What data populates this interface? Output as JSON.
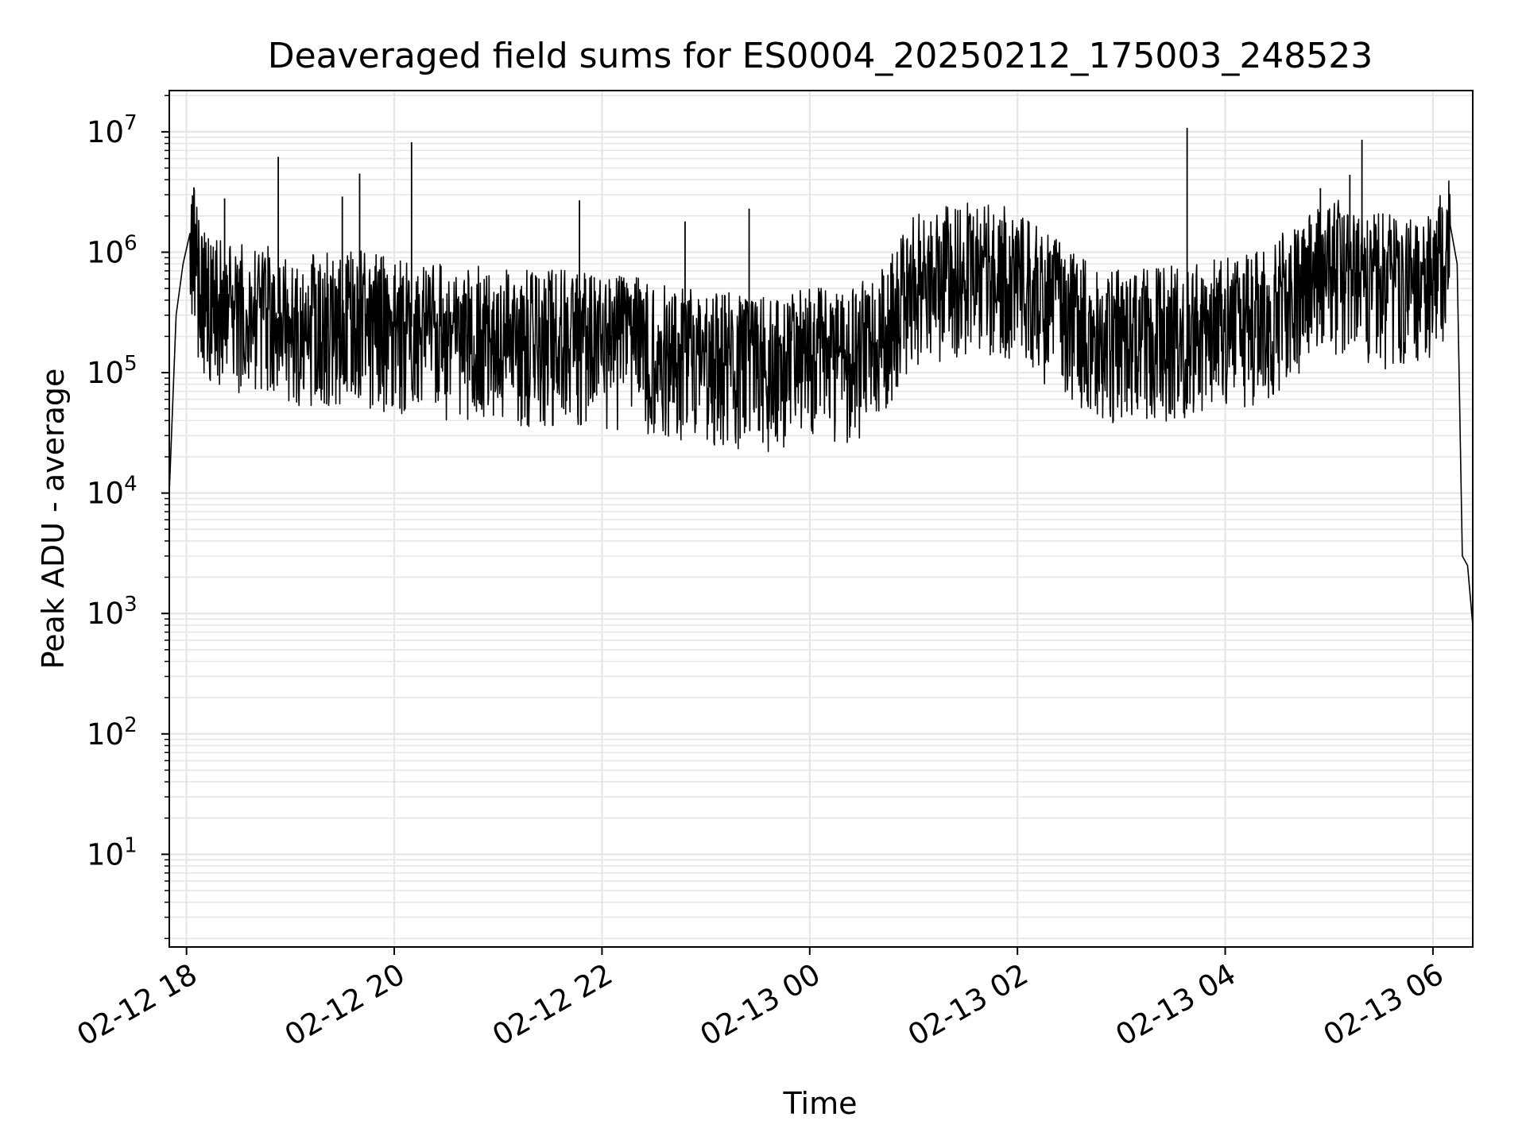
{
  "chart_data": {
    "type": "line",
    "title": "Deaveraged field sums for ES0004_20250212_175003_248523",
    "xlabel": "Time",
    "ylabel": "Peak ADU - average",
    "yscale": "log",
    "ylim": [
      1.7,
      22000000
    ],
    "xlim": [
      "2025-02-12 17:50:03",
      "2025-02-13 06:23:00"
    ],
    "grid": true,
    "legend": "none",
    "line_color": "#000000",
    "grid_color": "#e6e6e6",
    "x_ticks": [
      "02-12 18",
      "02-12 20",
      "02-12 22",
      "02-13 00",
      "02-13 02",
      "02-13 04",
      "02-13 06"
    ],
    "y_tick_base": "10",
    "y_tick_exponents": [
      "1",
      "2",
      "3",
      "4",
      "5",
      "6",
      "7"
    ],
    "series": [
      {
        "x": [
          "2025-02-12 17:50:03",
          "2025-02-12 17:54:00",
          "2025-02-12 17:58:00",
          "2025-02-12 18:02:00",
          "2025-02-12 18:10:00",
          "2025-02-12 18:25:00",
          "2025-02-12 18:45:00",
          "2025-02-12 19:00:00",
          "2025-02-12 19:20:00",
          "2025-02-12 19:40:00",
          "2025-02-12 20:00:00",
          "2025-02-12 20:20:00",
          "2025-02-12 20:40:00",
          "2025-02-12 21:00:00",
          "2025-02-12 21:20:00",
          "2025-02-12 21:40:00",
          "2025-02-12 22:00:00",
          "2025-02-12 22:20:00",
          "2025-02-12 22:40:00",
          "2025-02-12 23:00:00",
          "2025-02-12 23:20:00",
          "2025-02-12 23:40:00",
          "2025-02-13 00:00:00",
          "2025-02-13 00:20:00",
          "2025-02-13 00:40:00",
          "2025-02-13 01:00:00",
          "2025-02-13 01:20:00",
          "2025-02-13 01:40:00",
          "2025-02-13 02:00:00",
          "2025-02-13 02:20:00",
          "2025-02-13 02:40:00",
          "2025-02-13 03:00:00",
          "2025-02-13 03:20:00",
          "2025-02-13 03:40:00",
          "2025-02-13 04:00:00",
          "2025-02-13 04:20:00",
          "2025-02-13 04:40:00",
          "2025-02-13 05:00:00",
          "2025-02-13 05:20:00",
          "2025-02-13 05:40:00",
          "2025-02-13 06:00:00",
          "2025-02-13 06:10:00",
          "2025-02-13 06:14:00",
          "2025-02-13 06:17:00",
          "2025-02-13 06:20:00",
          "2025-02-13 06:23:00"
        ],
        "y": [
          10000,
          300000,
          800000,
          1400000,
          450000,
          350000,
          320000,
          300000,
          280000,
          290000,
          250000,
          230000,
          220000,
          210000,
          200000,
          200000,
          190000,
          180000,
          150000,
          140000,
          130000,
          120000,
          150000,
          130000,
          200000,
          600000,
          700000,
          750000,
          650000,
          400000,
          250000,
          200000,
          220000,
          230000,
          250000,
          300000,
          500000,
          800000,
          700000,
          550000,
          600000,
          1500000,
          800000,
          3000,
          2500,
          800
        ]
      }
    ],
    "spikes": {
      "x": [
        "2025-02-12 18:22:00",
        "2025-02-12 18:53:00",
        "2025-02-12 19:30:00",
        "2025-02-12 19:40:00",
        "2025-02-12 20:10:00",
        "2025-02-12 21:47:00",
        "2025-02-12 22:48:00",
        "2025-02-12 23:25:00",
        "2025-02-13 01:10:00",
        "2025-02-13 03:38:00",
        "2025-02-13 04:55:00",
        "2025-02-13 05:12:00",
        "2025-02-13 05:19:00"
      ],
      "y": [
        2800000,
        6200000,
        2900000,
        4500000,
        8200000,
        2700000,
        1800000,
        2300000,
        1800000,
        10800000,
        3400000,
        4400000,
        8600000
      ]
    }
  }
}
